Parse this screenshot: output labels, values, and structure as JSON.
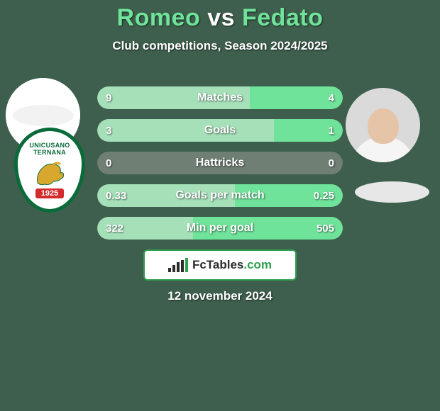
{
  "background_color": "#3e5f4d",
  "text_color": "#ffffff",
  "accent_color": "#5fc98a",
  "title": {
    "player1": "Romeo",
    "vs": "vs",
    "player2": "Fedato",
    "player1_color": "#6fe39a",
    "vs_color": "#ffffff",
    "player2_color": "#6fe39a",
    "fontsize": 34
  },
  "subtitle": {
    "text": "Club competitions, Season 2024/2025",
    "fontsize": 17,
    "color": "#ffffff"
  },
  "left_crest": {
    "line1": "UNICUSANO",
    "line2": "TERNANA",
    "year": "1925",
    "border_color": "#0a6b3a",
    "inner_bg": "#ffffff",
    "accent_red": "#d42a2a",
    "griffin_color": "#d8a82e"
  },
  "right_avatar": {
    "bg": "#dadada",
    "skin": "#e6c4a8",
    "shirt": "#f5f5f5"
  },
  "right_ellipse": {
    "bg": "#e7e7e7"
  },
  "bars": {
    "track_color": "#6f7f74",
    "left_fill_color": "#a5e0b9",
    "right_fill_color": "#6fe39a",
    "label_color": "#ffffff",
    "value_color": "#ffffff",
    "rows": [
      {
        "label": "Matches",
        "left": "9",
        "right": "4",
        "left_pct": 62,
        "right_pct": 38
      },
      {
        "label": "Goals",
        "left": "3",
        "right": "1",
        "left_pct": 72,
        "right_pct": 28
      },
      {
        "label": "Hattricks",
        "left": "0",
        "right": "0",
        "left_pct": 0,
        "right_pct": 0
      },
      {
        "label": "Goals per match",
        "left": "0.33",
        "right": "0.25",
        "left_pct": 56,
        "right_pct": 44
      },
      {
        "label": "Min per goal",
        "left": "322",
        "right": "505",
        "left_pct": 39,
        "right_pct": 61
      }
    ]
  },
  "branding": {
    "site": "FcTables",
    "tld": ".com",
    "bar_colors": [
      "#2c2c2c",
      "#2c2c2c",
      "#2c2c2c",
      "#2c2c2c",
      "#2fa04e"
    ],
    "text_color": "#2c2c2c",
    "tld_color": "#2fa04e",
    "bg": "#ffffff",
    "border_color": "#2fa04e"
  },
  "date": {
    "text": "12 november 2024",
    "color": "#ffffff",
    "fontsize": 17
  }
}
